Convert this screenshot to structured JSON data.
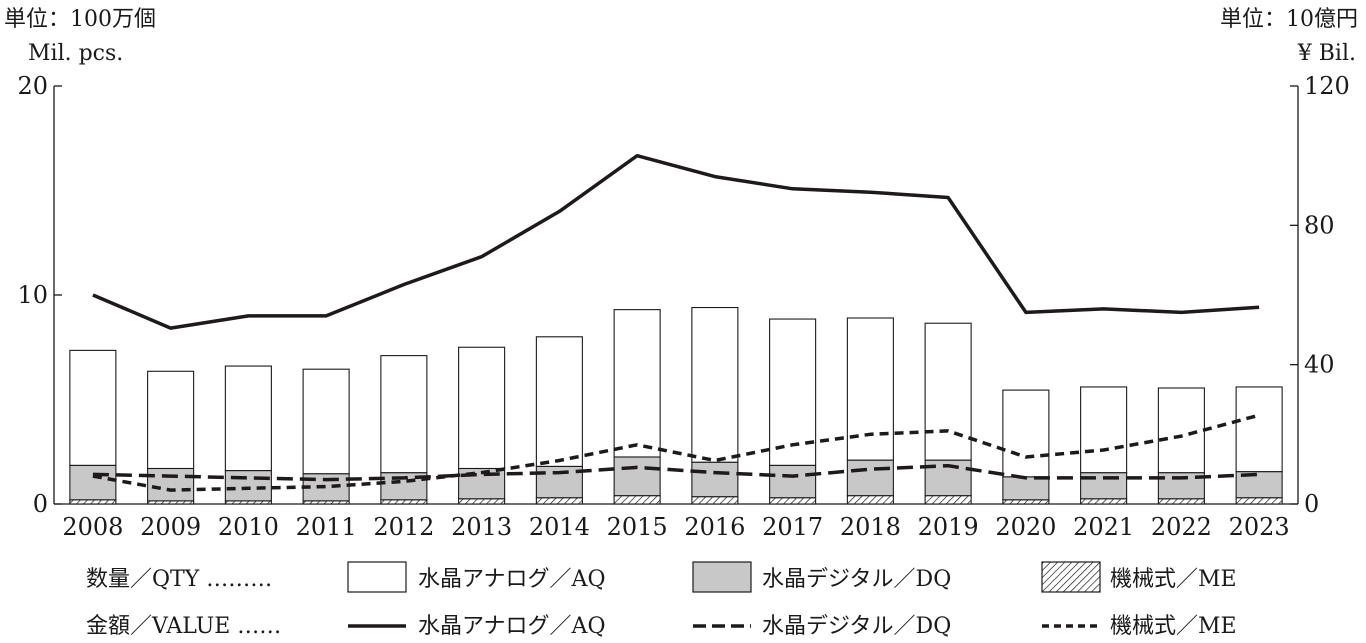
{
  "units": {
    "left_line1": "単位：100万個",
    "left_line2": "Mil. pcs.",
    "right_line1": "単位：10億円",
    "right_line2": "¥ Bil."
  },
  "legend": {
    "qty_label": "数量／QTY ………",
    "value_label": "金額／VALUE ……",
    "aq": "水晶アナログ／AQ",
    "dq": "水晶デジタル／DQ",
    "me": "機械式／ME"
  },
  "colors": {
    "aq_bar": "#ffffff",
    "dq_bar": "#c8c8c8",
    "line": "#1e1a1a"
  },
  "chart_data": {
    "type": "bar",
    "categories": [
      "2008",
      "2009",
      "2010",
      "2011",
      "2012",
      "2013",
      "2014",
      "2015",
      "2016",
      "2017",
      "2018",
      "2019",
      "2020",
      "2021",
      "2022",
      "2023"
    ],
    "y_left": {
      "label": "Mil. pcs.",
      "ylim": [
        0,
        20
      ],
      "ticks": [
        0,
        10,
        20
      ]
    },
    "y_right": {
      "label": "¥ Bil.",
      "ylim": [
        0,
        120
      ],
      "ticks": [
        0,
        40,
        80,
        120
      ]
    },
    "grid": false,
    "legend_position": "bottom",
    "bar_series": [
      {
        "name": "水晶アナログ／AQ",
        "values": [
          5.5,
          4.65,
          5.0,
          5.0,
          5.6,
          5.8,
          6.2,
          7.05,
          7.4,
          7.0,
          6.8,
          6.55,
          4.15,
          4.1,
          4.05,
          4.05
        ]
      },
      {
        "name": "水晶デジタル／DQ",
        "values": [
          1.65,
          1.55,
          1.45,
          1.3,
          1.3,
          1.45,
          1.5,
          1.85,
          1.65,
          1.55,
          1.7,
          1.7,
          1.1,
          1.25,
          1.25,
          1.25
        ]
      },
      {
        "name": "機械式／ME",
        "values": [
          0.2,
          0.15,
          0.15,
          0.15,
          0.2,
          0.25,
          0.3,
          0.4,
          0.35,
          0.3,
          0.4,
          0.4,
          0.2,
          0.25,
          0.25,
          0.3
        ]
      }
    ],
    "line_series": [
      {
        "name": "水晶アナログ／AQ",
        "values": [
          60,
          50.5,
          54,
          54,
          63,
          71,
          84,
          100,
          94,
          90.5,
          89.5,
          88,
          55,
          56,
          55,
          56.5
        ]
      },
      {
        "name": "水晶デジタル／DQ",
        "values": [
          8.5,
          8,
          7.5,
          7,
          7.5,
          8.5,
          9,
          10.5,
          9,
          8,
          10,
          11,
          7.5,
          7.5,
          7.5,
          8.5
        ]
      },
      {
        "name": "機械式／ME",
        "values": [
          8,
          4,
          4.5,
          5,
          6.5,
          9,
          12.5,
          17,
          12.5,
          17,
          20,
          21,
          13.5,
          15.5,
          19.5,
          25.5
        ]
      }
    ]
  }
}
